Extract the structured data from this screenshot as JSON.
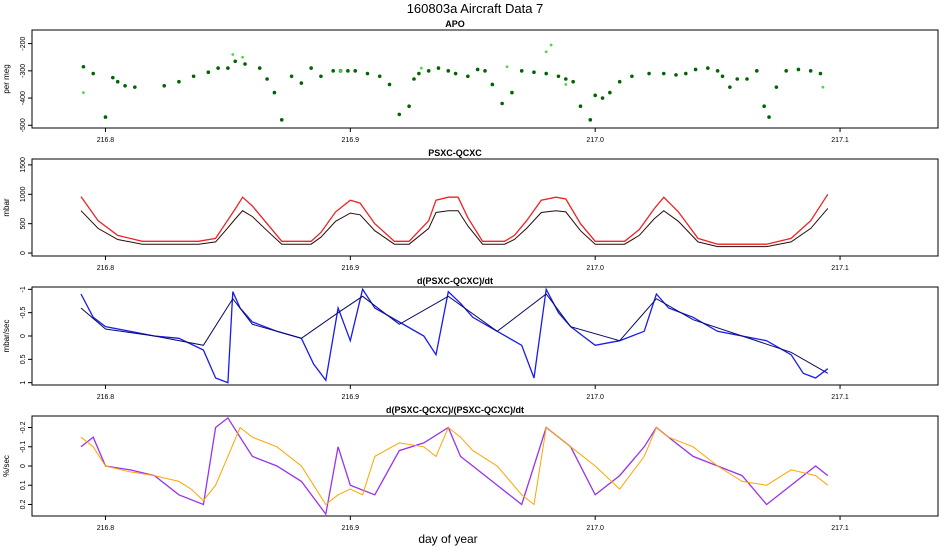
{
  "figure": {
    "title": "160803a   Aircraft Data 7",
    "xlabel": "day of year"
  },
  "chart_data": [
    {
      "type": "scatter",
      "title": "APO",
      "ylabel": "per meg",
      "xlim": [
        216.77,
        217.14
      ],
      "ylim": [
        -510,
        -150
      ],
      "y_reversed": false,
      "yticks": [
        -500,
        -400,
        -300,
        -200
      ],
      "xticks": [
        216.8,
        216.9,
        217.0,
        217.1
      ],
      "series": [
        {
          "color": "#006400",
          "style": "points",
          "x": [
            216.791,
            216.795,
            216.8,
            216.803,
            216.805,
            216.808,
            216.812,
            216.824,
            216.83,
            216.836,
            216.842,
            216.846,
            216.85,
            216.853,
            216.857,
            216.863,
            216.866,
            216.869,
            216.872,
            216.876,
            216.88,
            216.884,
            216.888,
            216.893,
            216.896,
            216.899,
            216.902,
            216.907,
            216.912,
            216.916,
            216.92,
            216.924,
            216.926,
            216.928,
            216.932,
            216.936,
            216.94,
            216.943,
            216.948,
            216.952,
            216.955,
            216.958,
            216.962,
            216.966,
            216.97,
            216.975,
            216.98,
            216.985,
            216.988,
            216.991,
            216.994,
            216.998,
            217.0,
            217.003,
            217.006,
            217.01,
            217.015,
            217.022,
            217.028,
            217.033,
            217.037,
            217.041,
            217.046,
            217.05,
            217.052,
            217.055,
            217.058,
            217.062,
            217.066,
            217.069,
            217.071,
            217.074,
            217.078,
            217.083,
            217.088,
            217.092
          ],
          "y": [
            -285,
            -310,
            -470,
            -325,
            -340,
            -355,
            -360,
            -355,
            -340,
            -320,
            -305,
            -290,
            -290,
            -265,
            -275,
            -290,
            -330,
            -380,
            -480,
            -320,
            -345,
            -290,
            -320,
            -300,
            -300,
            -300,
            -300,
            -310,
            -320,
            -350,
            -460,
            -430,
            -330,
            -310,
            -300,
            -290,
            -300,
            -310,
            -320,
            -295,
            -300,
            -350,
            -420,
            -380,
            -300,
            -305,
            -310,
            -320,
            -330,
            -340,
            -430,
            -480,
            -390,
            -400,
            -380,
            -340,
            -320,
            -310,
            -310,
            -315,
            -310,
            -295,
            -290,
            -300,
            -320,
            -360,
            -330,
            -330,
            -300,
            -430,
            -470,
            -360,
            -300,
            -295,
            -300,
            -310
          ]
        },
        {
          "color": "#44dd44",
          "style": "points",
          "x": [
            216.791,
            216.852,
            216.856,
            216.896,
            216.929,
            216.964,
            216.98,
            216.982,
            216.988,
            217.093
          ],
          "y": [
            -380,
            -240,
            -250,
            -300,
            -290,
            -285,
            -230,
            -205,
            -350,
            -360
          ]
        }
      ]
    },
    {
      "type": "line",
      "title": "PSXC-QCXC",
      "ylabel": "mbar",
      "xlim": [
        216.77,
        217.14
      ],
      "ylim": [
        -50,
        1600
      ],
      "y_reversed": false,
      "yticks": [
        0,
        500,
        1000,
        1500
      ],
      "xticks": [
        216.8,
        216.9,
        217.0,
        217.1
      ],
      "series": [
        {
          "color": "#ee2222",
          "x": [
            216.79,
            216.797,
            216.805,
            216.815,
            216.83,
            216.838,
            216.845,
            216.849,
            216.853,
            216.856,
            216.86,
            216.866,
            216.872,
            216.884,
            216.888,
            216.894,
            216.9,
            216.904,
            216.91,
            216.918,
            216.924,
            216.932,
            216.935,
            216.94,
            216.944,
            216.948,
            216.954,
            216.963,
            216.967,
            216.972,
            216.978,
            216.984,
            216.988,
            216.994,
            217.0,
            217.012,
            217.018,
            217.024,
            217.028,
            217.034,
            217.042,
            217.05,
            217.07,
            217.08,
            217.088,
            217.095
          ],
          "y": [
            960,
            550,
            300,
            200,
            200,
            200,
            250,
            500,
            750,
            950,
            800,
            500,
            200,
            200,
            350,
            700,
            900,
            850,
            500,
            200,
            200,
            550,
            900,
            950,
            950,
            600,
            200,
            200,
            300,
            550,
            900,
            950,
            920,
            500,
            200,
            200,
            400,
            750,
            950,
            700,
            250,
            150,
            150,
            250,
            550,
            1000
          ]
        },
        {
          "color": "#2a0a0a",
          "x": [
            216.79,
            216.797,
            216.805,
            216.815,
            216.83,
            216.838,
            216.845,
            216.849,
            216.853,
            216.856,
            216.86,
            216.866,
            216.872,
            216.884,
            216.888,
            216.894,
            216.9,
            216.904,
            216.91,
            216.918,
            216.924,
            216.932,
            216.935,
            216.94,
            216.944,
            216.948,
            216.954,
            216.963,
            216.967,
            216.972,
            216.978,
            216.984,
            216.988,
            216.994,
            217.0,
            217.012,
            217.018,
            217.024,
            217.028,
            217.034,
            217.042,
            217.05,
            217.07,
            217.08,
            217.088,
            217.095
          ],
          "y": [
            720,
            420,
            230,
            150,
            150,
            150,
            190,
            380,
            580,
            720,
            620,
            380,
            150,
            150,
            270,
            540,
            680,
            650,
            380,
            150,
            150,
            420,
            690,
            720,
            720,
            460,
            150,
            150,
            230,
            420,
            690,
            720,
            700,
            380,
            150,
            150,
            300,
            580,
            720,
            540,
            190,
            110,
            110,
            190,
            420,
            760
          ]
        }
      ]
    },
    {
      "type": "line",
      "title": "d(PSXC-QCXC)/dt",
      "ylabel": "mbar/sec",
      "xlim": [
        216.77,
        217.14
      ],
      "ylim": [
        -1.05,
        1.05
      ],
      "y_reversed": true,
      "yticks": [
        -1.0,
        -0.5,
        0.0,
        0.5,
        1.0
      ],
      "xticks": [
        216.8,
        216.9,
        217.0,
        217.1
      ],
      "series": [
        {
          "color": "#1a1aee",
          "x": [
            216.79,
            216.795,
            216.8,
            216.81,
            216.82,
            216.83,
            216.84,
            216.845,
            216.85,
            216.852,
            216.855,
            216.86,
            216.87,
            216.88,
            216.885,
            216.89,
            216.895,
            216.9,
            216.905,
            216.91,
            216.92,
            216.93,
            216.935,
            216.94,
            216.945,
            216.95,
            216.96,
            216.97,
            216.975,
            216.98,
            216.985,
            216.99,
            216.995,
            217.0,
            217.01,
            217.02,
            217.025,
            217.03,
            217.04,
            217.05,
            217.06,
            217.07,
            217.08,
            217.085,
            217.09,
            217.095
          ],
          "y": [
            -0.9,
            -0.4,
            -0.2,
            -0.1,
            0.0,
            0.05,
            0.3,
            0.9,
            1.0,
            -0.95,
            -0.6,
            -0.3,
            -0.1,
            0.05,
            0.6,
            0.95,
            -0.6,
            0.1,
            -1.0,
            -0.6,
            -0.3,
            0.0,
            0.4,
            -0.95,
            -0.7,
            -0.4,
            -0.1,
            0.2,
            0.9,
            -1.0,
            -0.5,
            -0.2,
            0.0,
            0.2,
            0.1,
            -0.1,
            -0.9,
            -0.6,
            -0.4,
            -0.1,
            0.0,
            0.1,
            0.4,
            0.8,
            0.9,
            0.7
          ]
        },
        {
          "color": "#0a0a66",
          "x": [
            216.79,
            216.8,
            216.82,
            216.84,
            216.852,
            216.86,
            216.88,
            216.895,
            216.905,
            216.92,
            216.94,
            216.96,
            216.98,
            216.99,
            217.01,
            217.025,
            217.04,
            217.06,
            217.08,
            217.095
          ],
          "y": [
            -0.6,
            -0.15,
            0.0,
            0.2,
            -0.8,
            -0.25,
            0.05,
            -0.5,
            -0.85,
            -0.25,
            -0.85,
            -0.1,
            -0.9,
            -0.2,
            0.1,
            -0.8,
            -0.35,
            0.0,
            0.35,
            0.8
          ]
        }
      ]
    },
    {
      "type": "line",
      "title": "d(PSXC-QCXC)/(PSXC-QCXC)/dt",
      "ylabel": "%/sec",
      "xlim": [
        216.77,
        217.14
      ],
      "ylim": [
        -0.26,
        0.26
      ],
      "y_reversed": true,
      "yticks": [
        -0.2,
        -0.1,
        0.0,
        0.1,
        0.2
      ],
      "xticks": [
        216.8,
        216.9,
        217.0,
        217.1
      ],
      "series": [
        {
          "color": "#9933ee",
          "x": [
            216.79,
            216.795,
            216.8,
            216.81,
            216.82,
            216.83,
            216.84,
            216.845,
            216.85,
            216.855,
            216.86,
            216.87,
            216.88,
            216.89,
            216.895,
            216.9,
            216.91,
            216.92,
            216.93,
            216.94,
            216.945,
            216.95,
            216.96,
            216.97,
            216.98,
            216.99,
            217.0,
            217.01,
            217.02,
            217.025,
            217.03,
            217.04,
            217.05,
            217.06,
            217.07,
            217.08,
            217.09,
            217.095
          ],
          "y": [
            -0.1,
            -0.15,
            0.0,
            0.02,
            0.05,
            0.15,
            0.2,
            -0.2,
            -0.25,
            -0.15,
            -0.05,
            0.0,
            0.08,
            0.25,
            -0.1,
            0.1,
            0.15,
            -0.08,
            -0.12,
            -0.2,
            -0.05,
            0.0,
            0.1,
            0.2,
            -0.2,
            -0.1,
            0.15,
            0.05,
            -0.1,
            -0.2,
            -0.15,
            -0.05,
            0.0,
            0.05,
            0.2,
            0.1,
            0.0,
            0.05
          ]
        },
        {
          "color": "#ffa500",
          "x": [
            216.79,
            216.795,
            216.8,
            216.81,
            216.82,
            216.83,
            216.835,
            216.84,
            216.845,
            216.85,
            216.855,
            216.86,
            216.87,
            216.88,
            216.885,
            216.89,
            216.895,
            216.9,
            216.905,
            216.91,
            216.92,
            216.93,
            216.935,
            216.94,
            216.945,
            216.95,
            216.96,
            216.97,
            216.975,
            216.98,
            216.985,
            216.99,
            217.0,
            217.01,
            217.02,
            217.025,
            217.03,
            217.04,
            217.05,
            217.06,
            217.07,
            217.08,
            217.09,
            217.095
          ],
          "y": [
            -0.15,
            -0.1,
            0.0,
            0.03,
            0.05,
            0.08,
            0.12,
            0.18,
            0.1,
            -0.05,
            -0.2,
            -0.15,
            -0.1,
            0.0,
            0.1,
            0.2,
            0.15,
            0.12,
            0.15,
            -0.05,
            -0.12,
            -0.1,
            -0.05,
            -0.2,
            -0.15,
            -0.08,
            0.0,
            0.15,
            0.2,
            -0.2,
            -0.15,
            -0.1,
            0.0,
            0.12,
            -0.05,
            -0.2,
            -0.15,
            -0.1,
            0.0,
            0.08,
            0.1,
            0.02,
            0.05,
            0.1
          ]
        }
      ]
    }
  ]
}
